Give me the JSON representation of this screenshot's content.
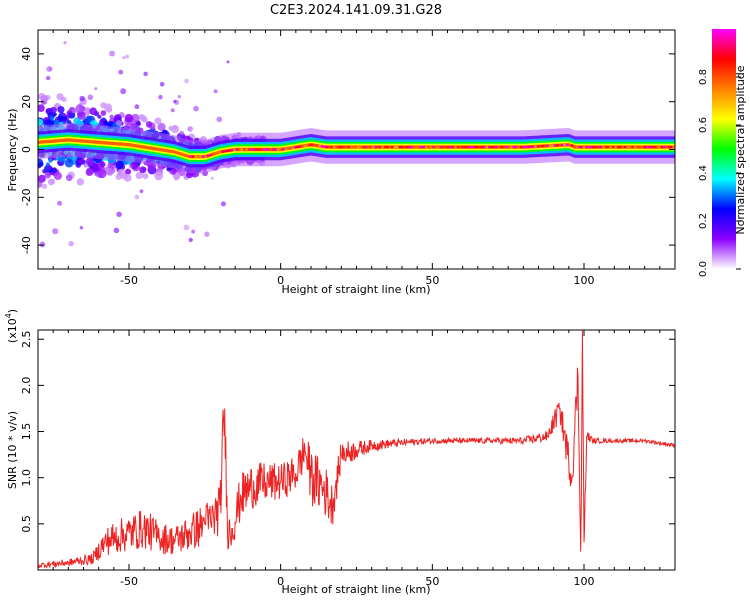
{
  "title": "C2E3.2024.141.09.31.G28",
  "chart_data": [
    {
      "type": "heatmap",
      "xlabel": "Height of straight line (km)",
      "ylabel": "Frequency (Hz)",
      "xlim": [
        -80,
        130
      ],
      "ylim": [
        -50,
        50
      ],
      "x_ticks": [
        -50,
        0,
        50,
        100
      ],
      "y_ticks": [
        -40,
        -20,
        0,
        20,
        40
      ],
      "colorbar": {
        "label": "Normalized spectral amplitude",
        "range": [
          0,
          1
        ],
        "ticks": [
          0.0,
          0.2,
          0.4,
          0.6,
          0.8
        ],
        "colors": [
          "#ffffff",
          "#8b00ff",
          "#0000ff",
          "#00ffff",
          "#00ff00",
          "#ffff00",
          "#ff8000",
          "#ff0000",
          "#ff00ff"
        ]
      },
      "ridge": {
        "x": [
          -80,
          -70,
          -60,
          -50,
          -40,
          -35,
          -30,
          -25,
          -20,
          -15,
          -10,
          -5,
          0,
          5,
          10,
          15,
          20,
          30,
          50,
          80,
          95,
          97,
          100,
          130
        ],
        "y": [
          3,
          4,
          3,
          2,
          0,
          -1,
          -3,
          -3,
          -1,
          0,
          0,
          0,
          0,
          1,
          2,
          1,
          1,
          1,
          1,
          1,
          2,
          1,
          1,
          1
        ]
      }
    },
    {
      "type": "line",
      "xlabel": "Height of straight line (km)",
      "ylabel": "SNR (10 * v/v)",
      "y_scale_label": "(x10",
      "y_scale_exp": "4",
      "y_scale_close": ")",
      "xlim": [
        -80,
        130
      ],
      "ylim": [
        0,
        2.6
      ],
      "x_ticks": [
        -50,
        0,
        50,
        100
      ],
      "y_ticks": [
        0.5,
        1.0,
        1.5,
        2.0,
        2.5
      ],
      "series": [
        {
          "color": "#ee2222",
          "x": [
            -80,
            -70,
            -62,
            -58,
            -55,
            -50,
            -45,
            -40,
            -35,
            -30,
            -25,
            -22,
            -20,
            -18.5,
            -17.5,
            -16,
            -13,
            -10,
            -5,
            0,
            5,
            8,
            10,
            14,
            17,
            20,
            25,
            30,
            40,
            50,
            60,
            70,
            80,
            88,
            92,
            96,
            98,
            99,
            99.5,
            100,
            101,
            103,
            110,
            120,
            130
          ],
          "y": [
            0.05,
            0.08,
            0.12,
            0.3,
            0.35,
            0.4,
            0.45,
            0.35,
            0.32,
            0.4,
            0.5,
            0.55,
            0.7,
            1.75,
            0.4,
            0.45,
            0.8,
            0.9,
            0.95,
            0.95,
            1.05,
            1.3,
            1.0,
            0.9,
            0.7,
            1.25,
            1.3,
            1.35,
            1.38,
            1.4,
            1.4,
            1.4,
            1.4,
            1.45,
            1.75,
            1.0,
            2.1,
            0.2,
            2.6,
            0.3,
            1.45,
            1.4,
            1.4,
            1.4,
            1.35
          ],
          "noise": [
            0.03,
            0.04,
            0.06,
            0.15,
            0.18,
            0.2,
            0.22,
            0.18,
            0.16,
            0.2,
            0.24,
            0.25,
            0.3,
            0.4,
            0.2,
            0.22,
            0.25,
            0.25,
            0.22,
            0.2,
            0.2,
            0.22,
            0.3,
            0.3,
            0.25,
            0.15,
            0.1,
            0.06,
            0.04,
            0.03,
            0.03,
            0.03,
            0.04,
            0.06,
            0.15,
            0.2,
            0.25,
            0.2,
            0.2,
            0.2,
            0.06,
            0.03,
            0.02,
            0.02,
            0.02
          ]
        }
      ]
    }
  ]
}
